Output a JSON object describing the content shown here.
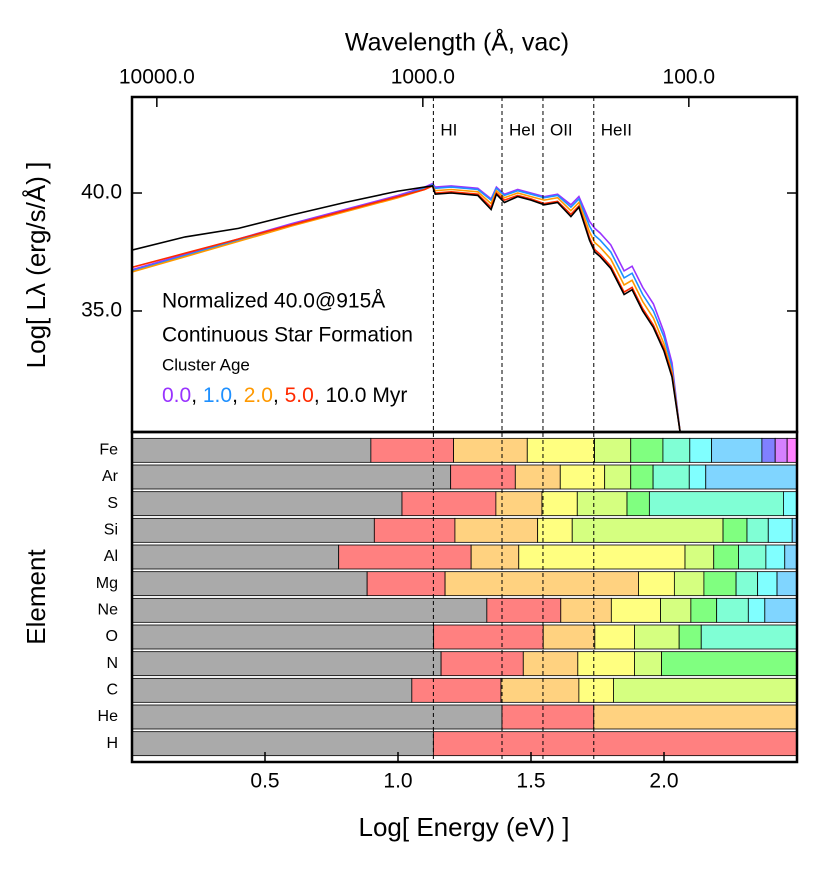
{
  "chart_data": [
    {
      "type": "line",
      "xlabel_top": "Wavelength (Å, vac)",
      "ylabel": "Log[ Lλ (erg/s/Å) ]",
      "annotations": [
        "Normalized 40.0@915Å",
        "Continuous Star Formation",
        "Cluster Age"
      ],
      "legend_separator": ", ",
      "legend_unit": "Myr",
      "xlim": [
        0,
        2.5
      ],
      "ylim": [
        29.87,
        44.07
      ],
      "yticks": [
        {
          "value": 35,
          "label": "35.0"
        },
        {
          "value": 40,
          "label": "40.0"
        }
      ],
      "x2ticks": [
        {
          "value": 10000,
          "label": "10000.0"
        },
        {
          "value": 1000,
          "label": "1000.0"
        },
        {
          "value": 100,
          "label": "100.0"
        }
      ],
      "edge_lines": [
        {
          "label": "HI",
          "value": 1.133
        },
        {
          "label": "HeI",
          "value": 1.391
        },
        {
          "label": "OII",
          "value": 1.545
        },
        {
          "label": "HeII",
          "value": 1.736
        }
      ],
      "x": [
        0,
        0.2,
        0.4,
        0.6,
        0.8,
        1.0,
        1.1,
        1.13,
        1.14,
        1.2,
        1.3,
        1.35,
        1.37,
        1.4,
        1.45,
        1.5,
        1.55,
        1.6,
        1.65,
        1.68,
        1.72,
        1.74,
        1.76,
        1.8,
        1.85,
        1.88,
        1.92,
        1.96,
        2.0,
        2.03,
        2.06
      ],
      "series": [
        {
          "name": "0.0",
          "color": "#9933ff",
          "values": [
            36.75,
            37.4,
            38.05,
            38.7,
            39.3,
            39.9,
            40.25,
            40.4,
            40.25,
            40.3,
            40.2,
            39.75,
            40.25,
            39.95,
            40.15,
            40.0,
            39.85,
            39.95,
            39.5,
            39.85,
            38.8,
            38.5,
            38.3,
            37.8,
            36.7,
            36.9,
            36.0,
            35.3,
            34.1,
            32.8,
            29.9
          ]
        },
        {
          "name": "1.0",
          "color": "#1e90ff",
          "values": [
            36.7,
            37.35,
            38.0,
            38.65,
            39.25,
            39.85,
            40.2,
            40.35,
            40.2,
            40.25,
            40.15,
            39.7,
            40.2,
            39.9,
            40.1,
            39.95,
            39.8,
            39.9,
            39.4,
            39.75,
            38.6,
            38.2,
            38.0,
            37.5,
            36.4,
            36.6,
            35.7,
            35.0,
            33.9,
            32.6,
            29.9
          ]
        },
        {
          "name": "2.0",
          "color": "#ff9900",
          "values": [
            36.65,
            37.3,
            37.95,
            38.6,
            39.2,
            39.8,
            40.15,
            40.3,
            40.1,
            40.15,
            40.05,
            39.55,
            40.1,
            39.8,
            40.0,
            39.85,
            39.7,
            39.8,
            39.25,
            39.6,
            38.35,
            37.9,
            37.7,
            37.2,
            36.1,
            36.3,
            35.4,
            34.7,
            33.6,
            32.4,
            29.9
          ]
        },
        {
          "name": "5.0",
          "color": "#ff2a00",
          "values": [
            36.85,
            37.45,
            38.05,
            38.65,
            39.25,
            39.85,
            40.15,
            40.3,
            40.0,
            40.05,
            39.95,
            39.4,
            40.0,
            39.7,
            39.9,
            39.75,
            39.55,
            39.65,
            39.1,
            39.45,
            38.1,
            37.6,
            37.4,
            36.9,
            35.8,
            36.0,
            35.1,
            34.4,
            33.4,
            32.3,
            29.9
          ]
        },
        {
          "name": "10.0",
          "color": "#000000",
          "values": [
            37.58,
            38.14,
            38.5,
            39.07,
            39.6,
            40.08,
            40.25,
            40.3,
            39.95,
            40.0,
            39.9,
            39.3,
            39.95,
            39.6,
            39.85,
            39.7,
            39.5,
            39.6,
            39.0,
            39.4,
            38.0,
            37.5,
            37.3,
            36.8,
            35.7,
            35.9,
            35.0,
            34.3,
            33.3,
            32.2,
            29.9
          ]
        }
      ]
    },
    {
      "type": "edges",
      "xlabel": "Log[ Energy (eV) ]",
      "ylabel": "Element",
      "xlim": [
        0,
        2.5
      ],
      "xticks": [
        0.5,
        {
          "value": 1,
          "label": "1.0"
        },
        1.5,
        {
          "value": 2,
          "label": "2.0"
        }
      ],
      "stage_colors": [
        "#aaaaaa",
        "#ff8080",
        "#ffd280",
        "#ffff80",
        "#d5ff80",
        "#80ff80",
        "#80ffd5",
        "#80ffff",
        "#80d5ff",
        "#8080ff",
        "#d580ff",
        "#ff80ff"
      ],
      "rows": [
        {
          "label": "Fe",
          "edges": [
            0.898,
            1.209,
            1.486,
            1.739,
            1.875,
            1.996,
            2.097,
            2.179,
            2.368,
            2.418,
            2.463
          ]
        },
        {
          "label": "Ar",
          "edges": [
            1.198,
            1.441,
            1.61,
            1.777,
            1.875,
            1.959,
            2.095,
            2.157
          ]
        },
        {
          "label": "S",
          "edges": [
            1.015,
            1.368,
            1.541,
            1.674,
            1.861,
            1.945,
            2.449
          ]
        },
        {
          "label": "Si",
          "edges": [
            0.911,
            1.214,
            1.525,
            1.655,
            2.222,
            2.312,
            2.392,
            2.482
          ]
        },
        {
          "label": "Al",
          "edges": [
            0.777,
            1.275,
            1.454,
            2.079,
            2.187,
            2.28,
            2.383,
            2.454
          ]
        },
        {
          "label": "Mg",
          "edges": [
            0.884,
            1.177,
            1.904,
            2.039,
            2.15,
            2.271,
            2.352,
            2.425
          ]
        },
        {
          "label": "Ne",
          "edges": [
            1.334,
            1.612,
            1.802,
            1.987,
            2.101,
            2.198,
            2.317,
            2.379
          ]
        },
        {
          "label": "O",
          "edges": [
            1.134,
            1.546,
            1.74,
            1.889,
            2.057,
            2.14
          ]
        },
        {
          "label": "N",
          "edges": [
            1.162,
            1.471,
            1.676,
            1.889,
            1.991
          ]
        },
        {
          "label": "C",
          "edges": [
            1.052,
            1.387,
            1.68,
            1.81
          ]
        },
        {
          "label": "He",
          "edges": [
            1.391,
            1.736
          ]
        },
        {
          "label": "H",
          "edges": [
            1.133
          ]
        }
      ]
    }
  ]
}
